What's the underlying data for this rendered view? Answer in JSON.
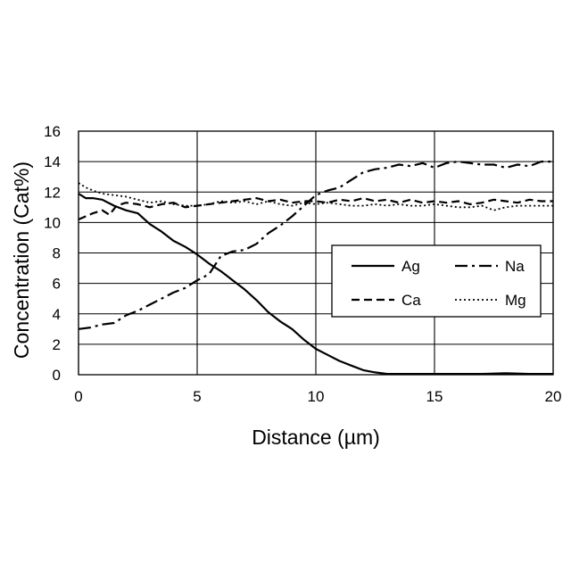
{
  "chart_data": {
    "type": "line",
    "title": "",
    "xlabel": "Distance (µm)",
    "ylabel": "Concentration (Cat%)",
    "xlim": [
      0,
      20
    ],
    "ylim": [
      0,
      16
    ],
    "x_ticks": [
      0,
      5,
      10,
      15,
      20
    ],
    "y_ticks": [
      0,
      2,
      4,
      6,
      8,
      10,
      12,
      14,
      16
    ],
    "grid": true,
    "legend_position": "center-right",
    "series": [
      {
        "name": "Ag",
        "dash": "solid",
        "x": [
          0,
          0.3,
          0.6,
          1.0,
          1.5,
          2.0,
          2.5,
          3.0,
          3.5,
          4.0,
          4.5,
          5.0,
          5.5,
          6.0,
          6.5,
          7.0,
          7.5,
          8.0,
          8.5,
          9.0,
          9.5,
          10.0,
          10.5,
          11.0,
          11.5,
          12.0,
          12.5,
          13.0,
          14.0,
          15.0,
          16.0,
          17.0,
          18.0,
          19.0,
          20.0
        ],
        "y": [
          11.9,
          11.6,
          11.6,
          11.5,
          11.1,
          10.8,
          10.6,
          9.9,
          9.4,
          8.8,
          8.4,
          7.9,
          7.3,
          6.8,
          6.2,
          5.6,
          4.9,
          4.1,
          3.5,
          3.0,
          2.3,
          1.7,
          1.3,
          0.9,
          0.6,
          0.3,
          0.15,
          0.05,
          0.05,
          0.05,
          0.05,
          0.05,
          0.1,
          0.05,
          0.05
        ]
      },
      {
        "name": "Na",
        "dash": "dashdot",
        "x": [
          0,
          0.5,
          1.0,
          1.5,
          2.0,
          2.5,
          3.0,
          3.5,
          4.0,
          4.5,
          5.0,
          5.5,
          6.0,
          6.5,
          7.0,
          7.5,
          8.0,
          8.5,
          9.0,
          9.5,
          10.0,
          10.5,
          11.0,
          11.5,
          12.0,
          12.5,
          13.0,
          13.5,
          14.0,
          14.5,
          15.0,
          15.5,
          16.0,
          16.5,
          17.0,
          17.5,
          18.0,
          18.5,
          19.0,
          19.5,
          20.0
        ],
        "y": [
          3.0,
          3.1,
          3.3,
          3.4,
          3.9,
          4.2,
          4.6,
          5.0,
          5.4,
          5.7,
          6.2,
          6.6,
          7.8,
          8.1,
          8.2,
          8.6,
          9.3,
          9.8,
          10.4,
          11.1,
          11.8,
          12.1,
          12.3,
          12.8,
          13.3,
          13.5,
          13.6,
          13.8,
          13.7,
          13.9,
          13.6,
          13.9,
          14.0,
          13.9,
          13.8,
          13.8,
          13.6,
          13.8,
          13.7,
          14.0,
          14.0
        ]
      },
      {
        "name": "Ca",
        "dash": "dash",
        "x": [
          0,
          0.3,
          0.6,
          1.0,
          1.3,
          1.6,
          2.0,
          2.5,
          3.0,
          3.5,
          4.0,
          4.5,
          5.0,
          5.5,
          6.0,
          6.5,
          7.0,
          7.5,
          8.0,
          8.5,
          9.0,
          9.5,
          10.0,
          10.5,
          11.0,
          11.5,
          12.0,
          12.5,
          13.0,
          13.5,
          14.0,
          14.5,
          15.0,
          15.5,
          16.0,
          16.5,
          17.0,
          17.5,
          18.0,
          18.5,
          19.0,
          19.5,
          20.0
        ],
        "y": [
          10.2,
          10.4,
          10.6,
          10.8,
          10.5,
          11.1,
          11.3,
          11.2,
          11.0,
          11.2,
          11.3,
          11.0,
          11.1,
          11.2,
          11.3,
          11.4,
          11.5,
          11.6,
          11.4,
          11.5,
          11.3,
          11.4,
          11.4,
          11.3,
          11.5,
          11.4,
          11.6,
          11.4,
          11.5,
          11.3,
          11.5,
          11.3,
          11.4,
          11.3,
          11.4,
          11.2,
          11.3,
          11.5,
          11.4,
          11.3,
          11.5,
          11.4,
          11.4
        ]
      },
      {
        "name": "Mg",
        "dash": "dot",
        "x": [
          0,
          0.3,
          0.6,
          1.0,
          1.5,
          2.0,
          2.5,
          3.0,
          3.5,
          4.0,
          4.5,
          5.0,
          5.5,
          6.0,
          6.5,
          7.0,
          7.5,
          8.0,
          8.5,
          9.0,
          9.5,
          10.0,
          10.5,
          11.0,
          11.5,
          12.0,
          12.5,
          13.0,
          13.5,
          14.0,
          14.5,
          15.0,
          15.5,
          16.0,
          16.5,
          17.0,
          17.5,
          18.0,
          18.5,
          19.0,
          19.5,
          20.0
        ],
        "y": [
          12.6,
          12.3,
          12.1,
          11.9,
          11.8,
          11.7,
          11.5,
          11.3,
          11.4,
          11.2,
          11.1,
          11.1,
          11.2,
          11.4,
          11.3,
          11.4,
          11.2,
          11.4,
          11.2,
          11.1,
          11.3,
          11.2,
          11.3,
          11.2,
          11.1,
          11.1,
          11.2,
          11.1,
          11.2,
          11.1,
          11.1,
          11.2,
          11.1,
          11.0,
          11.0,
          11.1,
          10.8,
          11.0,
          11.1,
          11.1,
          11.1,
          11.1
        ]
      }
    ]
  }
}
